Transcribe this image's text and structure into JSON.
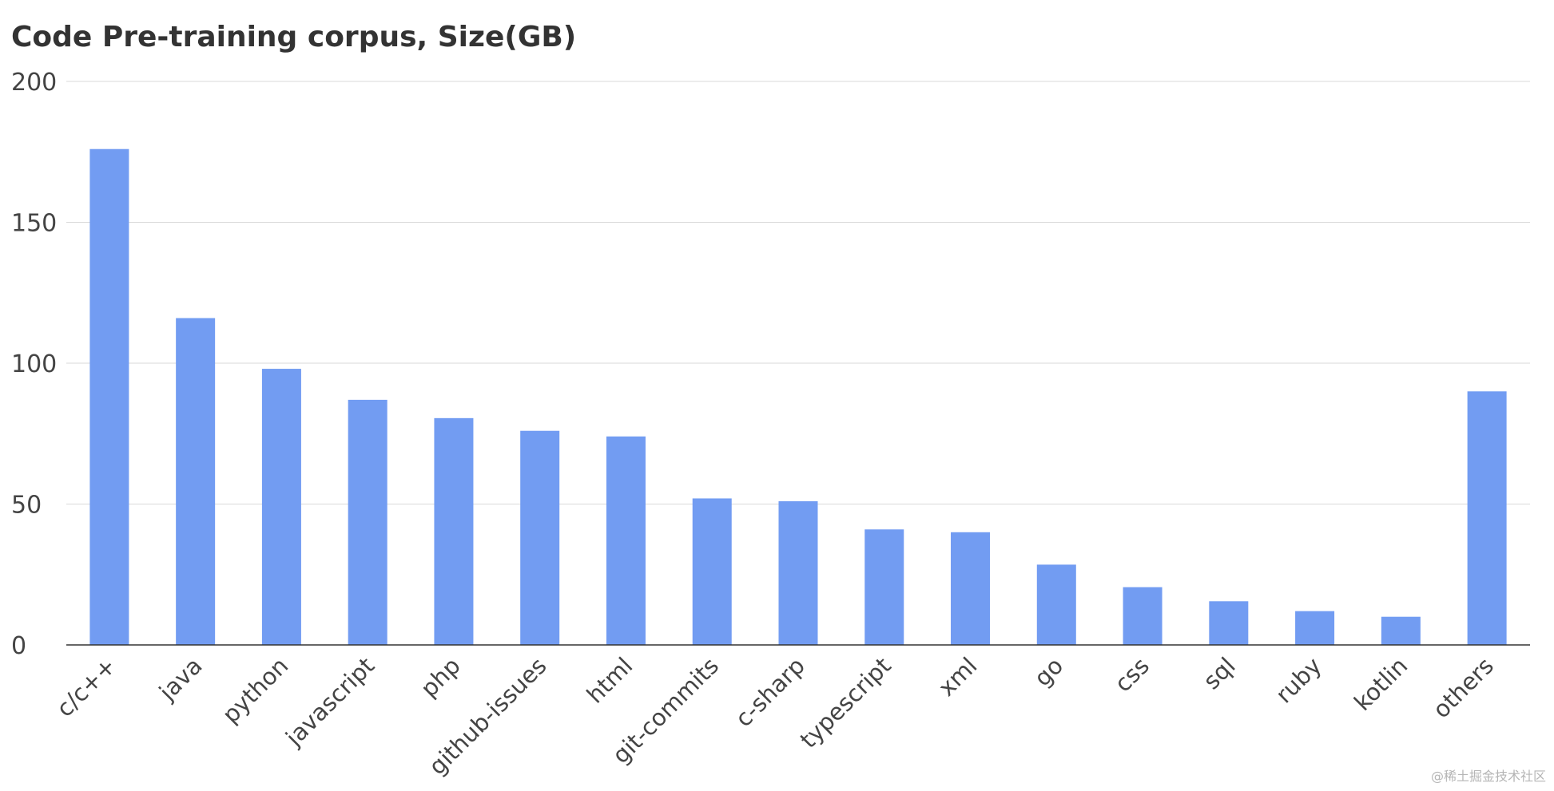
{
  "chart_data": {
    "type": "bar",
    "title": "Code Pre-training corpus, Size(GB)",
    "xlabel": "",
    "ylabel": "",
    "ylim": [
      0,
      200
    ],
    "yticks": [
      0,
      50,
      100,
      150,
      200
    ],
    "grid": true,
    "legend": "none",
    "bar_color": "#729cf2",
    "categories": [
      "c/c++",
      "java",
      "python",
      "javascript",
      "php",
      "github-issues",
      "html",
      "git-commits",
      "c-sharp",
      "typescript",
      "xml",
      "go",
      "css",
      "sql",
      "ruby",
      "kotlin",
      "others"
    ],
    "values": [
      176,
      116,
      98,
      87,
      80.5,
      76,
      74,
      52,
      51,
      41,
      40,
      28.5,
      20.5,
      15.5,
      12,
      10,
      90
    ]
  },
  "watermark": "@稀土掘金技术社区"
}
